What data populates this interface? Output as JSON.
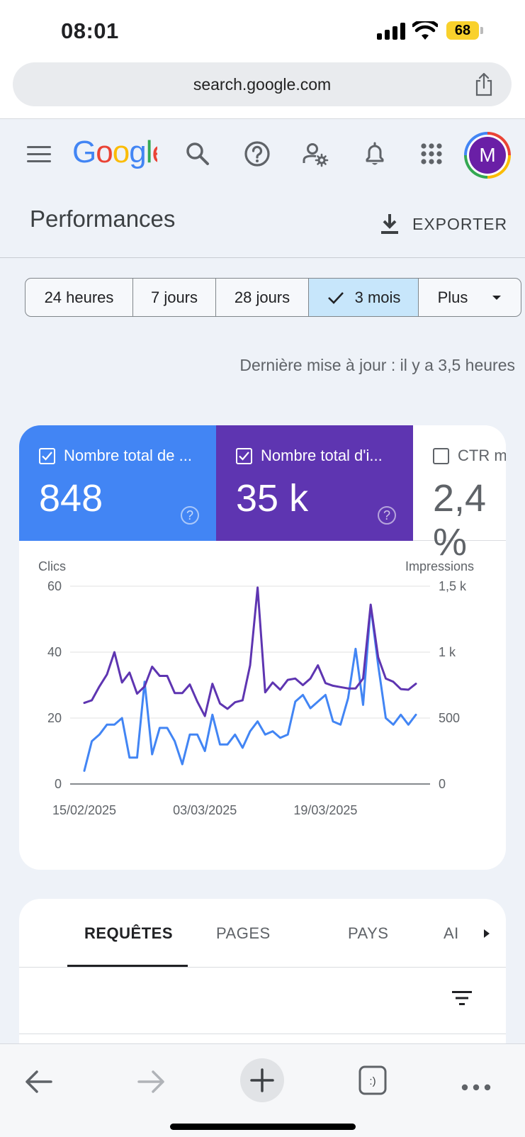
{
  "status": {
    "time": "08:01",
    "battery": "68"
  },
  "browser": {
    "url": "search.google.com"
  },
  "header": {
    "logo": "Google",
    "avatar_letter": "M"
  },
  "page": {
    "title": "Performances",
    "export_label": "EXPORTER"
  },
  "ranges": [
    {
      "label": "24 heures"
    },
    {
      "label": "7 jours"
    },
    {
      "label": "28 jours"
    },
    {
      "label": "3 mois"
    },
    {
      "label": "Plus"
    }
  ],
  "updated": "Dernière mise à jour : il y a 3,5 heures",
  "metrics": [
    {
      "label": "Nombre total de ...",
      "value": "848",
      "checked": true
    },
    {
      "label": "Nombre total d'i...",
      "value": "35 k",
      "checked": true
    },
    {
      "label": "CTR m",
      "value": "2,4 %",
      "checked": false
    }
  ],
  "chart_data": {
    "type": "line",
    "left_axis_title": "Clics",
    "right_axis_title": "Impressions",
    "ylim_left": [
      0,
      60
    ],
    "ylim_right": [
      0,
      1500
    ],
    "left_ticks": [
      "0",
      "20",
      "40",
      "60"
    ],
    "right_ticks": [
      "0",
      "500",
      "1 k",
      "1,5 k"
    ],
    "x_tick_labels": [
      "15/02/2025",
      "03/03/2025",
      "19/03/2025"
    ],
    "x_tick_index": [
      0,
      16,
      32
    ],
    "series": [
      {
        "name": "Nombre total de clics",
        "axis": "left",
        "color": "#4285f4",
        "values": [
          4,
          13,
          15,
          18,
          18,
          20,
          8,
          8,
          31,
          9,
          17,
          17,
          13,
          6,
          15,
          15,
          10,
          21,
          12,
          12,
          15,
          11,
          16,
          19,
          15,
          16,
          14,
          15,
          25,
          27,
          23,
          25,
          27,
          19,
          18,
          26,
          41,
          24,
          54,
          36,
          20,
          18,
          21,
          18,
          21
        ]
      },
      {
        "name": "Nombre total d'impressions",
        "axis": "right",
        "color": "#5e35b1",
        "values": [
          615,
          635,
          740,
          830,
          1000,
          770,
          845,
          685,
          740,
          890,
          820,
          820,
          690,
          690,
          755,
          625,
          515,
          760,
          610,
          570,
          620,
          635,
          900,
          1490,
          695,
          770,
          715,
          790,
          800,
          750,
          800,
          900,
          765,
          745,
          735,
          725,
          725,
          800,
          1360,
          960,
          800,
          775,
          720,
          715,
          760
        ]
      }
    ]
  },
  "tabs": [
    {
      "label": "REQUÊTES"
    },
    {
      "label": "PAGES"
    },
    {
      "label": "PAYS"
    },
    {
      "label": "AI"
    }
  ]
}
